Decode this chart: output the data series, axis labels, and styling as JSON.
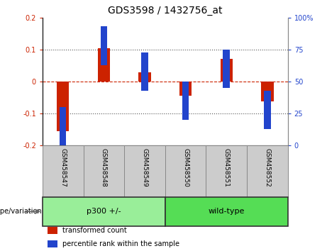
{
  "title": "GDS3598 / 1432756_at",
  "categories": [
    "GSM458547",
    "GSM458548",
    "GSM458549",
    "GSM458550",
    "GSM458551",
    "GSM458552"
  ],
  "red_values": [
    -0.155,
    0.105,
    0.028,
    -0.045,
    0.072,
    -0.062
  ],
  "blue_values_pct": [
    15,
    78,
    58,
    35,
    60,
    28
  ],
  "ylim_left": [
    -0.2,
    0.2
  ],
  "ylim_right": [
    0,
    100
  ],
  "yticks_left": [
    -0.2,
    -0.1,
    0.0,
    0.1,
    0.2
  ],
  "yticks_right": [
    0,
    25,
    50,
    75,
    100
  ],
  "ytick_labels_right": [
    "0",
    "25",
    "50",
    "75",
    "100%"
  ],
  "red_color": "#CC2200",
  "blue_color": "#2244CC",
  "zero_line_color": "#CC2200",
  "dotted_line_color": "#555555",
  "groups": [
    {
      "label": "p300 +/-",
      "count": 3,
      "color": "#99EE99"
    },
    {
      "label": "wild-type",
      "count": 3,
      "color": "#55DD55"
    }
  ],
  "group_label": "genotype/variation",
  "legend_items": [
    {
      "label": "transformed count",
      "color": "#CC2200"
    },
    {
      "label": "percentile rank within the sample",
      "color": "#2244CC"
    }
  ],
  "bar_width": 0.3,
  "blue_square_size": 0.12,
  "title_fontsize": 10,
  "tick_label_fontsize": 7,
  "category_fontsize": 6.5,
  "group_fontsize": 8
}
